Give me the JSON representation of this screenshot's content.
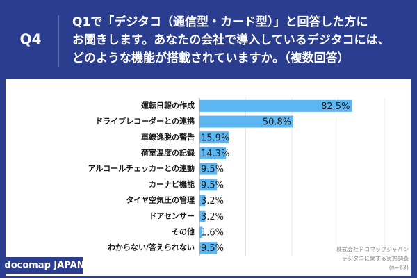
{
  "chart_data": {
    "type": "bar",
    "orientation": "horizontal",
    "question_label": "Q4",
    "title": [
      "Q1で「デジタコ（通信型・カード型）」と回答した方に",
      "お聞きします。あなたの会社で導入しているデジタコには、",
      "どのような機能が搭載されていますか。（複数回答）"
    ],
    "categories": [
      "運転日報の作成",
      "ドライブレコーダーとの連携",
      "車線逸脱の警告",
      "荷室温度の記録",
      "アルコールチェッカーとの連動",
      "カーナビ機能",
      "タイヤ空気圧の管理",
      "ドアセンサー",
      "その他",
      "わからない/答えられない"
    ],
    "values": [
      82.5,
      50.8,
      15.9,
      14.3,
      9.5,
      9.5,
      3.2,
      3.2,
      1.6,
      9.5
    ],
    "value_labels": [
      "82.5%",
      "50.8%",
      "15.9%",
      "14.3%",
      "9.5%",
      "9.5%",
      "3.2%",
      "3.2%",
      "1.6%",
      "9.5%"
    ],
    "color": "#5cb6f2",
    "xlim": [
      0,
      100
    ],
    "xticks": [
      0,
      25,
      50,
      75,
      100
    ],
    "grid": true,
    "source": [
      "株式会社ドコマップジャパン",
      "デジタコに関する実態調査",
      "(n=63)"
    ],
    "brand": "docomap JAPAN"
  }
}
